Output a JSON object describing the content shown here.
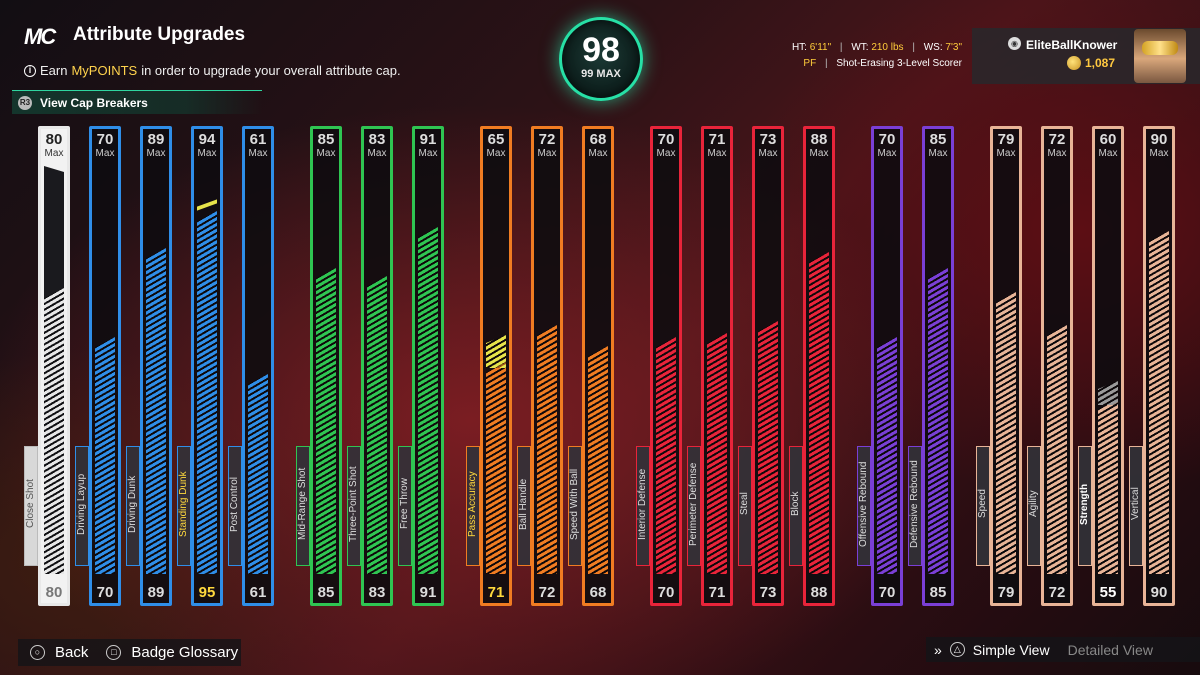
{
  "header": {
    "logo": "MC",
    "title": "Attribute Upgrades",
    "info_prefix": "Earn ",
    "info_highlight": "MyPOINTS",
    "info_suffix": " in order to upgrade your overall attribute cap.",
    "cap_breakers_label": "View Cap Breakers",
    "cap_breakers_icon": "R3"
  },
  "overall": {
    "value": "98",
    "max_label": "99 MAX"
  },
  "player": {
    "ht_label": "HT:",
    "ht": "6'11\"",
    "wt_label": "WT:",
    "wt": "210 lbs",
    "ws_label": "WS:",
    "ws": "7'3\"",
    "position": "PF",
    "archetype": "Shot-Erasing 3-Level Scorer",
    "gamertag": "EliteBallKnower",
    "vc": "1,087"
  },
  "max_label": "Max",
  "colors": {
    "white": "#e8e8e8",
    "blue": "#2f8ee8",
    "green": "#2fc552",
    "orange": "#f07c22",
    "red": "#e8243a",
    "purple": "#7a3fd6",
    "tan": "#e8b497",
    "boost_yellow": "#e7e34a",
    "boost_gray": "#9a9a9a"
  },
  "attributes": [
    {
      "name": "Close Shot",
      "cap": "80",
      "current": "80",
      "group": "white",
      "fill": 0.7,
      "style": "top"
    },
    {
      "name": "Driving Layup",
      "cap": "70",
      "current": "70",
      "group": "blue",
      "fill": 0.58
    },
    {
      "name": "Driving Dunk",
      "cap": "89",
      "current": "89",
      "group": "blue",
      "fill": 0.8
    },
    {
      "name": "Standing Dunk",
      "cap": "94",
      "current": "95",
      "group": "blue",
      "fill": 0.89,
      "style": "sel"
    },
    {
      "name": "Post Control",
      "cap": "61",
      "current": "61",
      "group": "blue",
      "fill": 0.49
    },
    {
      "name": "Mid-Range Shot",
      "cap": "85",
      "current": "85",
      "group": "green",
      "fill": 0.75
    },
    {
      "name": "Three-Point Shot",
      "cap": "83",
      "current": "83",
      "group": "green",
      "fill": 0.73
    },
    {
      "name": "Free Throw",
      "cap": "91",
      "current": "91",
      "group": "green",
      "fill": 0.85
    },
    {
      "name": "Pass Accuracy",
      "cap": "65",
      "current": "71",
      "group": "orange",
      "fill": 0.52,
      "boost": 0.08,
      "boost_color": "yellow",
      "style": "sel"
    },
    {
      "name": "Ball Handle",
      "cap": "72",
      "current": "72",
      "group": "orange",
      "fill": 0.61
    },
    {
      "name": "Speed With Ball",
      "cap": "68",
      "current": "68",
      "group": "orange",
      "fill": 0.56
    },
    {
      "name": "Interior Defense",
      "cap": "70",
      "current": "70",
      "group": "red",
      "fill": 0.58
    },
    {
      "name": "Perimeter Defense",
      "cap": "71",
      "current": "71",
      "group": "red",
      "fill": 0.59
    },
    {
      "name": "Steal",
      "cap": "73",
      "current": "73",
      "group": "red",
      "fill": 0.62
    },
    {
      "name": "Block",
      "cap": "88",
      "current": "88",
      "group": "red",
      "fill": 0.79
    },
    {
      "name": "Offensive Rebound",
      "cap": "70",
      "current": "70",
      "group": "purple",
      "fill": 0.58
    },
    {
      "name": "Defensive Rebound",
      "cap": "85",
      "current": "85",
      "group": "purple",
      "fill": 0.75
    },
    {
      "name": "Speed",
      "cap": "79",
      "current": "79",
      "group": "tan",
      "fill": 0.69
    },
    {
      "name": "Agility",
      "cap": "72",
      "current": "72",
      "group": "tan",
      "fill": 0.61
    },
    {
      "name": "Strength",
      "cap": "60",
      "current": "55",
      "group": "tan",
      "fill": 0.43,
      "boost": 0.06,
      "boost_color": "gray",
      "style": "white"
    },
    {
      "name": "Vertical",
      "cap": "90",
      "current": "90",
      "group": "tan",
      "fill": 0.84
    }
  ],
  "footer": {
    "back_label": "Back",
    "glossary_label": "Badge Glossary",
    "simple_view_label": "Simple View",
    "detailed_view_label": "Detailed View"
  }
}
